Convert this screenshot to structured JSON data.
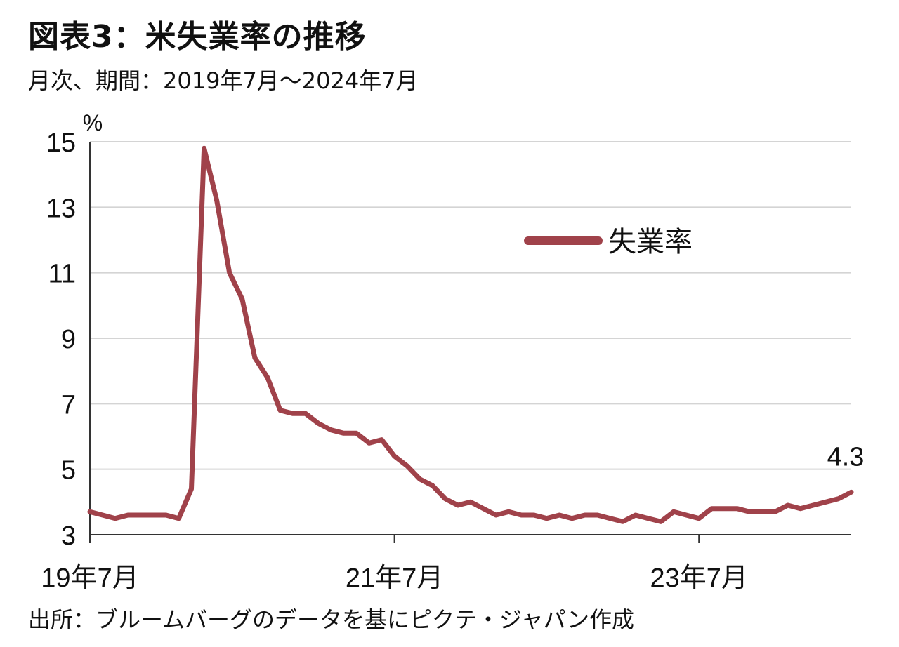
{
  "header": {
    "title": "図表3：米失業率の推移",
    "subtitle": "月次、期間：2019年7月～2024年7月"
  },
  "footer": {
    "source": "出所：ブルームバーグのデータを基にピクテ・ジャパン作成"
  },
  "colors": {
    "series": "#a0424a",
    "grid": "#d4d4d4",
    "axis": "#333333"
  },
  "chart_data": {
    "type": "line",
    "unit_label": "%",
    "ylim": [
      3,
      15
    ],
    "yticks": [
      3,
      5,
      7,
      9,
      11,
      13,
      15
    ],
    "grid": true,
    "legend_position": "top-right",
    "x_start": "2019-07",
    "x_end": "2024-07",
    "x_tick_labels": [
      {
        "x": "2019-07",
        "label": "19年7月"
      },
      {
        "x": "2021-07",
        "label": "21年7月"
      },
      {
        "x": "2023-07",
        "label": "23年7月"
      }
    ],
    "series": [
      {
        "name": "失業率",
        "x": [
          "2019-07",
          "2019-08",
          "2019-09",
          "2019-10",
          "2019-11",
          "2019-12",
          "2020-01",
          "2020-02",
          "2020-03",
          "2020-04",
          "2020-05",
          "2020-06",
          "2020-07",
          "2020-08",
          "2020-09",
          "2020-10",
          "2020-11",
          "2020-12",
          "2021-01",
          "2021-02",
          "2021-03",
          "2021-04",
          "2021-05",
          "2021-06",
          "2021-07",
          "2021-08",
          "2021-09",
          "2021-10",
          "2021-11",
          "2021-12",
          "2022-01",
          "2022-02",
          "2022-03",
          "2022-04",
          "2022-05",
          "2022-06",
          "2022-07",
          "2022-08",
          "2022-09",
          "2022-10",
          "2022-11",
          "2022-12",
          "2023-01",
          "2023-02",
          "2023-03",
          "2023-04",
          "2023-05",
          "2023-06",
          "2023-07",
          "2023-08",
          "2023-09",
          "2023-10",
          "2023-11",
          "2023-12",
          "2024-01",
          "2024-02",
          "2024-03",
          "2024-04",
          "2024-05",
          "2024-06",
          "2024-07"
        ],
        "values": [
          3.7,
          3.6,
          3.5,
          3.6,
          3.6,
          3.6,
          3.6,
          3.5,
          4.4,
          14.8,
          13.2,
          11.0,
          10.2,
          8.4,
          7.8,
          6.8,
          6.7,
          6.7,
          6.4,
          6.2,
          6.1,
          6.1,
          5.8,
          5.9,
          5.4,
          5.1,
          4.7,
          4.5,
          4.1,
          3.9,
          4.0,
          3.8,
          3.6,
          3.7,
          3.6,
          3.6,
          3.5,
          3.6,
          3.5,
          3.6,
          3.6,
          3.5,
          3.4,
          3.6,
          3.5,
          3.4,
          3.7,
          3.6,
          3.5,
          3.8,
          3.8,
          3.8,
          3.7,
          3.7,
          3.7,
          3.9,
          3.8,
          3.9,
          4.0,
          4.1,
          4.3
        ]
      }
    ],
    "annotations": [
      {
        "x": "2024-07",
        "y": 4.3,
        "text": "4.3"
      }
    ]
  }
}
